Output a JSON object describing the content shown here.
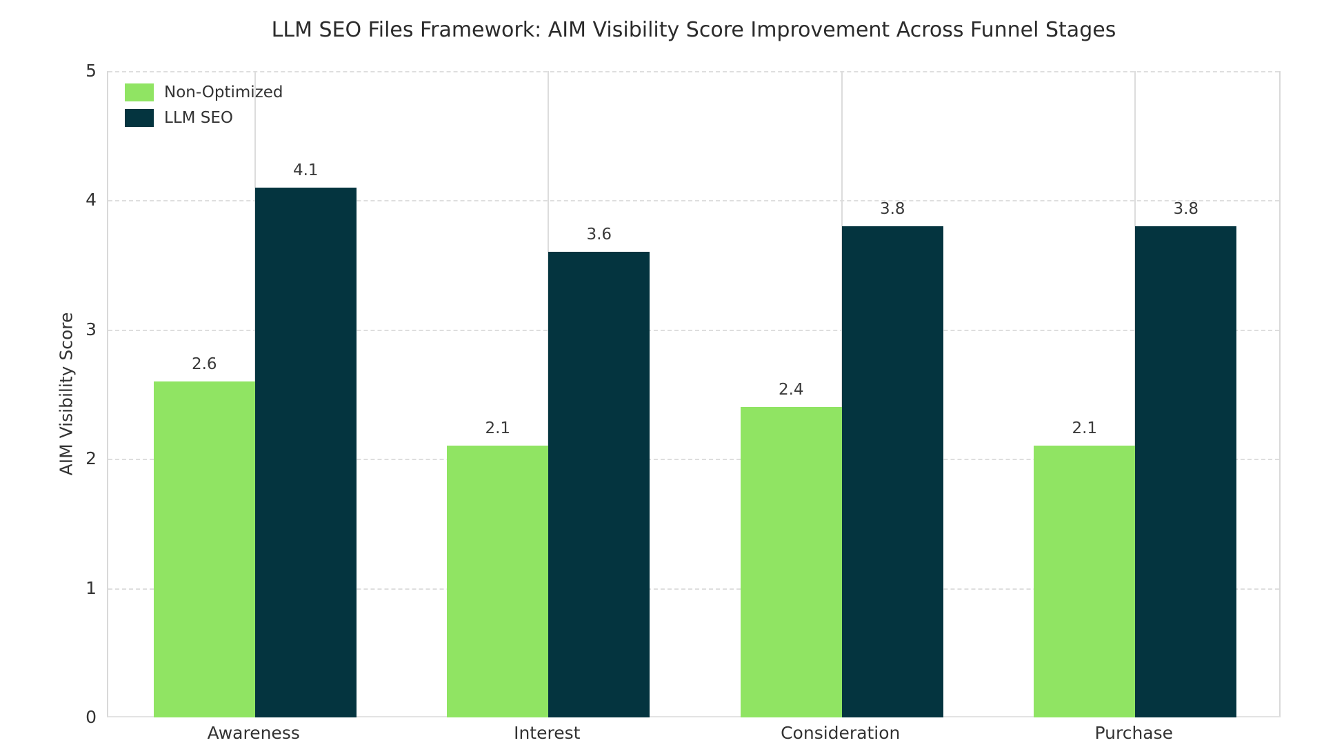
{
  "chart_data": {
    "type": "bar",
    "title": "LLM SEO Files Framework: AIM Visibility Score Improvement Across Funnel Stages",
    "xlabel": "",
    "ylabel": "AIM Visibility Score",
    "categories": [
      "Awareness",
      "Interest",
      "Consideration",
      "Purchase"
    ],
    "series": [
      {
        "name": "Non-Optimized",
        "color": "#90e463",
        "values": [
          2.6,
          2.1,
          2.4,
          2.1
        ]
      },
      {
        "name": "LLM SEO",
        "color": "#04343f",
        "values": [
          4.1,
          3.6,
          3.8,
          3.8
        ]
      }
    ],
    "ylim": [
      0,
      5
    ],
    "yticks": [
      0,
      1,
      2,
      3,
      4,
      5
    ],
    "value_labels": [
      "2.6",
      "4.1",
      "2.1",
      "3.6",
      "2.4",
      "3.8",
      "2.1",
      "3.8"
    ],
    "grid": {
      "horizontal": "dashed",
      "vertical": "solid"
    },
    "legend_position": "upper-left",
    "colors": {
      "text": "#333333",
      "gridline": "#dedede",
      "spine": "#d9d9d9",
      "background": "#ffffff"
    }
  }
}
